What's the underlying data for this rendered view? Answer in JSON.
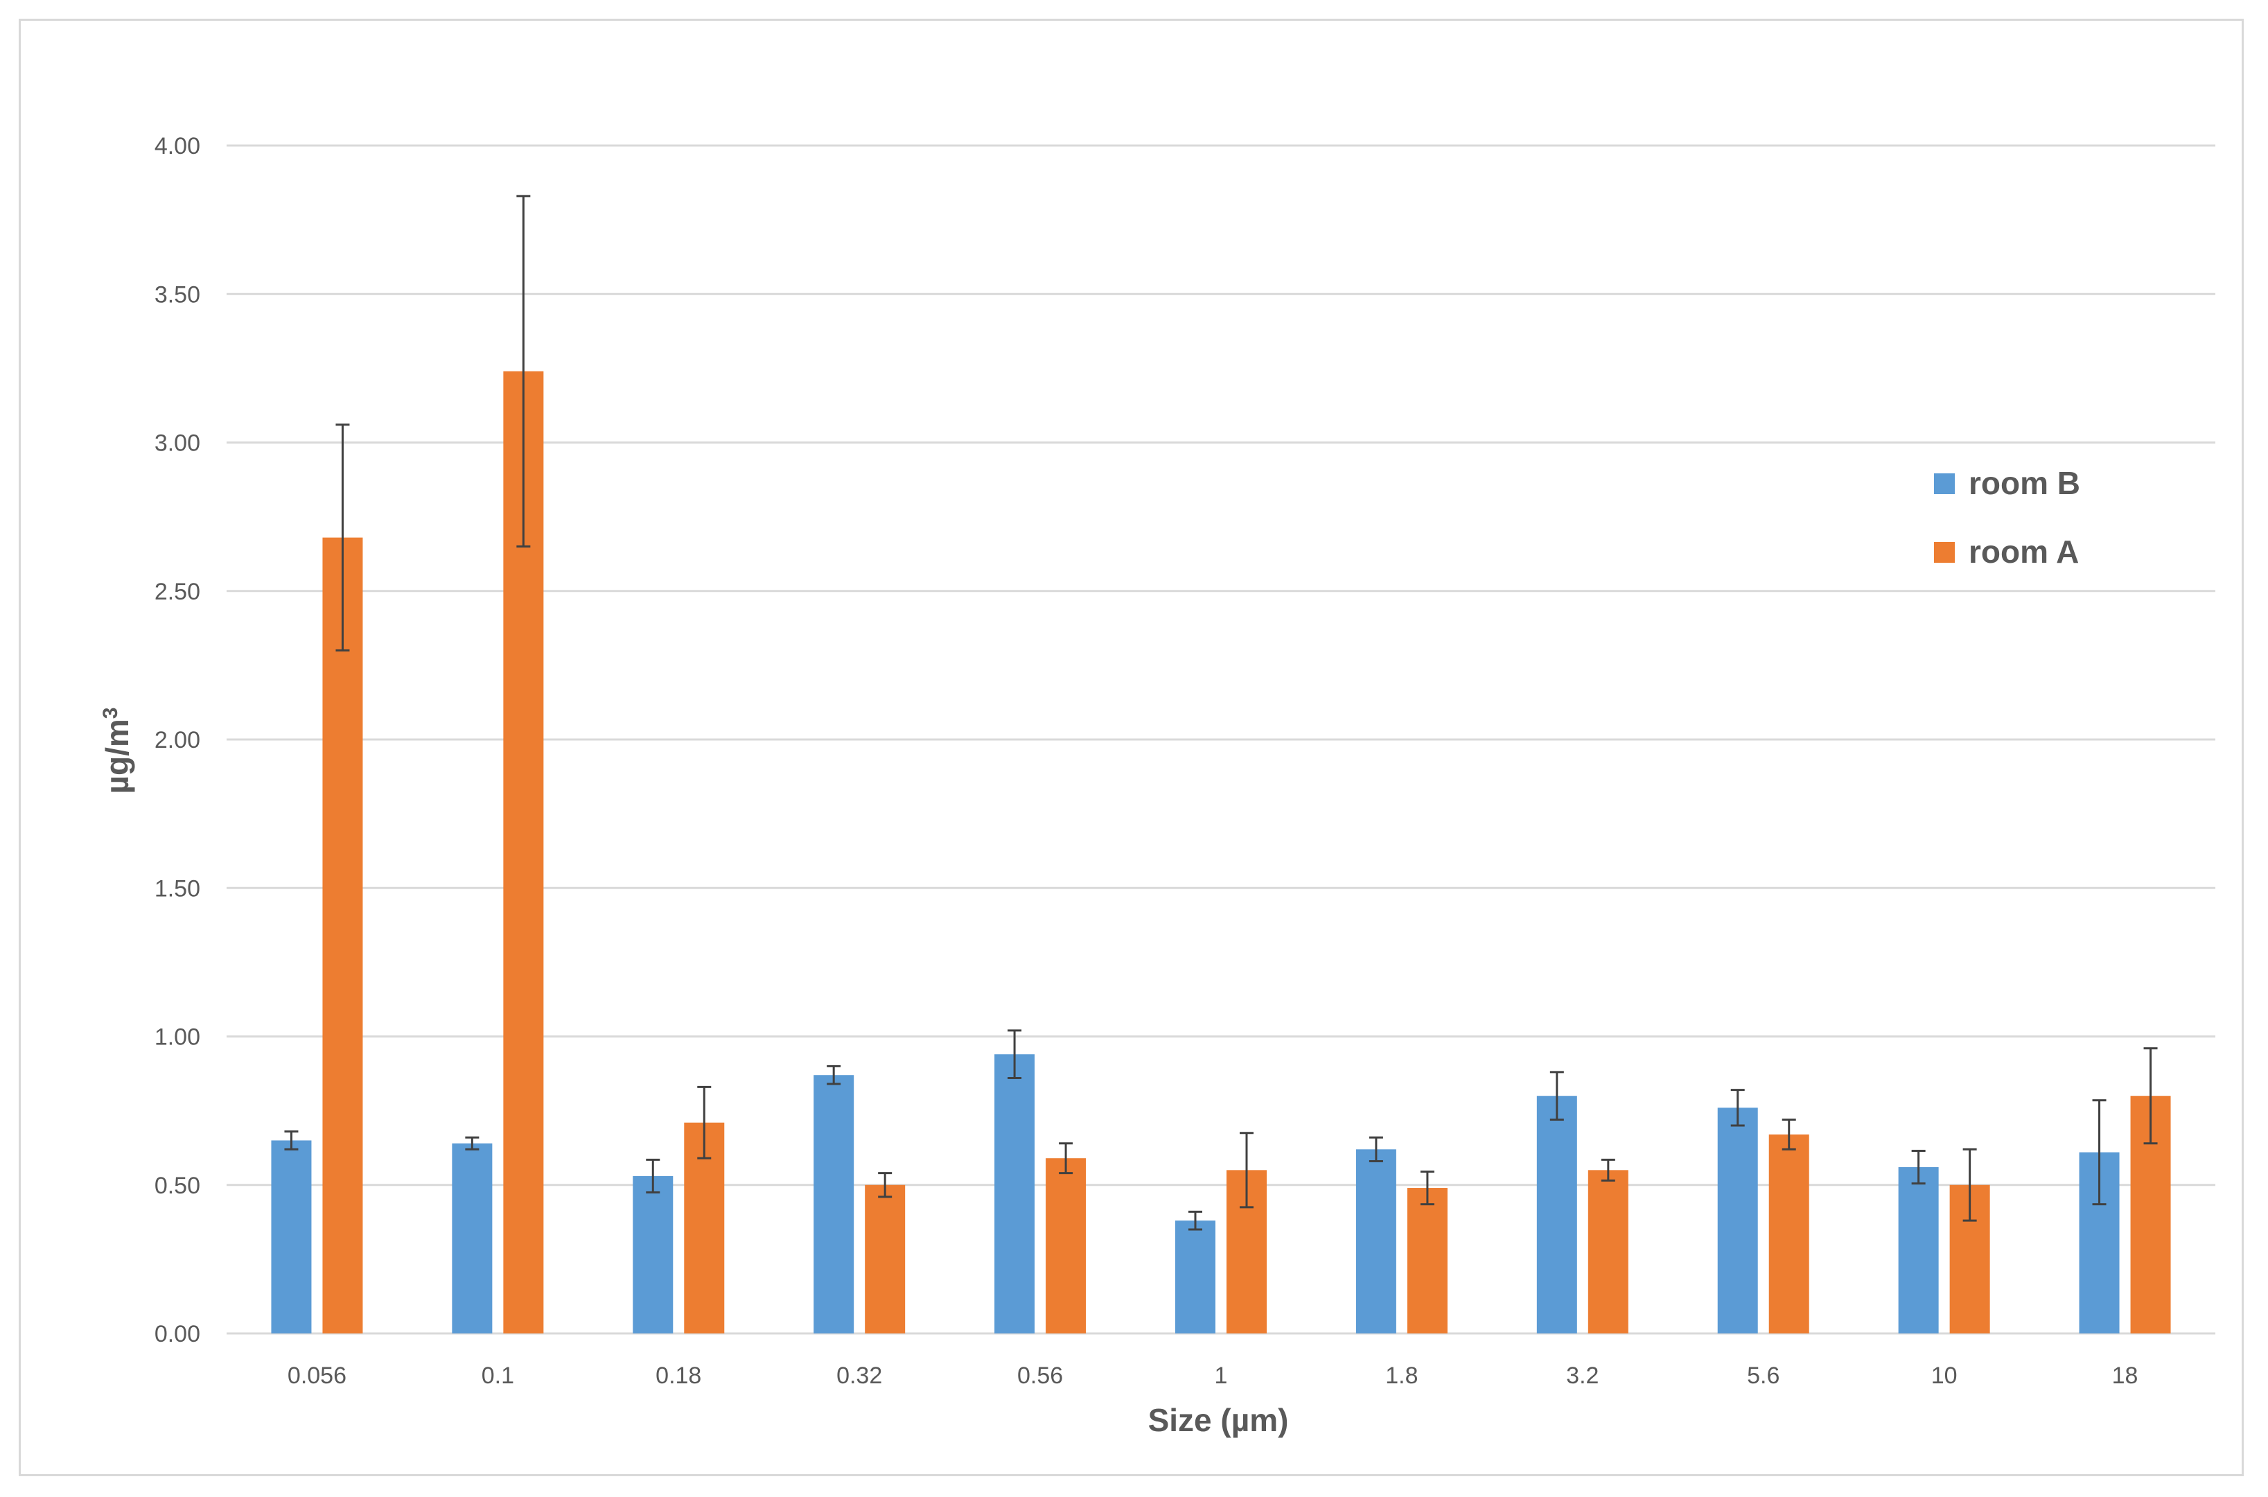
{
  "chart_data": {
    "type": "bar",
    "categories": [
      "0.056",
      "0.1",
      "0.18",
      "0.32",
      "0.56",
      "1",
      "1.8",
      "3.2",
      "5.6",
      "10",
      "18"
    ],
    "series": [
      {
        "name": "room B",
        "color": "#5B9BD5",
        "values": [
          0.65,
          0.64,
          0.53,
          0.87,
          0.94,
          0.38,
          0.62,
          0.8,
          0.76,
          0.56,
          0.61
        ],
        "error": [
          0.03,
          0.02,
          0.055,
          0.03,
          0.08,
          0.03,
          0.04,
          0.08,
          0.06,
          0.055,
          0.175
        ]
      },
      {
        "name": "room A",
        "color": "#ED7D31",
        "values": [
          2.68,
          3.24,
          0.71,
          0.5,
          0.59,
          0.55,
          0.49,
          0.55,
          0.67,
          0.5,
          0.8
        ],
        "error": [
          0.38,
          0.59,
          0.12,
          0.04,
          0.05,
          0.125,
          0.055,
          0.035,
          0.05,
          0.12,
          0.16
        ]
      }
    ],
    "y_ticks": [
      "0.00",
      "0.50",
      "1.00",
      "1.50",
      "2.00",
      "2.50",
      "3.00",
      "3.50",
      "4.00"
    ],
    "ylim": [
      0,
      4
    ],
    "xlabel": "Size (µm)",
    "ylabel": "µg/m",
    "ylabel_superscript": "3",
    "grid": true,
    "legend_position": "right",
    "error_bars": true,
    "gridline_color": "#d9d9d9",
    "error_bar_color": "#404040"
  }
}
